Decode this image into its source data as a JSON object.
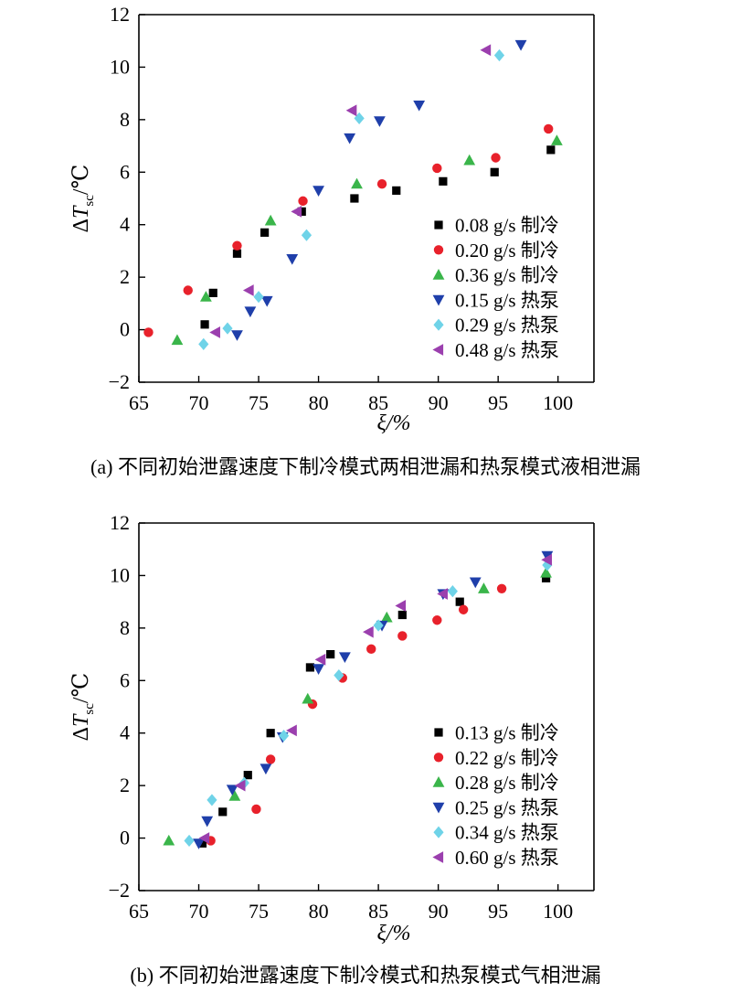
{
  "chart_data": [
    {
      "panel": "a",
      "type": "scatter",
      "caption": "(a) 不同初始泄露速度下制冷模式两相泄漏和热泵模式液相泄漏",
      "xlabel": "ξ/%",
      "ylabel": {
        "main": "ΔT",
        "sub": "sc",
        "unit": "/℃"
      },
      "xlim": [
        65,
        103
      ],
      "ylim": [
        -2,
        12
      ],
      "xticks": [
        65,
        70,
        75,
        80,
        85,
        90,
        95,
        100
      ],
      "yticks": [
        -2,
        0,
        2,
        4,
        6,
        8,
        10,
        12
      ],
      "grid": false,
      "legend_position": "lower-right",
      "series": [
        {
          "name": "0.08 g/s 制冷",
          "marker": "square",
          "color": "#000000",
          "points": [
            [
              70.5,
              0.2
            ],
            [
              71.2,
              1.4
            ],
            [
              73.2,
              2.9
            ],
            [
              75.5,
              3.7
            ],
            [
              78.6,
              4.5
            ],
            [
              83,
              5.0
            ],
            [
              86.5,
              5.3
            ],
            [
              90.4,
              5.65
            ],
            [
              94.7,
              6.0
            ],
            [
              99.4,
              6.85
            ]
          ]
        },
        {
          "name": "0.20 g/s 制冷",
          "marker": "circle",
          "color": "#e8212b",
          "points": [
            [
              65.8,
              -0.1
            ],
            [
              69.1,
              1.5
            ],
            [
              73.2,
              3.2
            ],
            [
              78.7,
              4.9
            ],
            [
              85.3,
              5.55
            ],
            [
              89.9,
              6.15
            ],
            [
              94.8,
              6.55
            ],
            [
              99.2,
              7.65
            ]
          ]
        },
        {
          "name": "0.36 g/s 制冷",
          "marker": "triangle-up",
          "color": "#3ab54a",
          "points": [
            [
              68.2,
              -0.4
            ],
            [
              70.6,
              1.25
            ],
            [
              76,
              4.15
            ],
            [
              83.2,
              5.55
            ],
            [
              92.6,
              6.45
            ],
            [
              99.9,
              7.2
            ]
          ]
        },
        {
          "name": "0.15 g/s 热泵",
          "marker": "triangle-down",
          "color": "#1f3faa",
          "points": [
            [
              73.2,
              -0.2
            ],
            [
              74.3,
              0.7
            ],
            [
              75.7,
              1.1
            ],
            [
              77.8,
              2.7
            ],
            [
              80,
              5.3
            ],
            [
              82.6,
              7.3
            ],
            [
              85.1,
              7.95
            ],
            [
              88.4,
              8.55
            ],
            [
              96.9,
              10.85
            ]
          ]
        },
        {
          "name": "0.29 g/s 热泵",
          "marker": "diamond",
          "color": "#6fd3e8",
          "points": [
            [
              70.4,
              -0.55
            ],
            [
              72.4,
              0.05
            ],
            [
              75,
              1.25
            ],
            [
              79,
              3.6
            ],
            [
              83.4,
              8.05
            ],
            [
              95.1,
              10.45
            ]
          ]
        },
        {
          "name": "0.48 g/s 热泵",
          "marker": "triangle-left",
          "color": "#9b3fae",
          "points": [
            [
              71.4,
              -0.1
            ],
            [
              74.2,
              1.5
            ],
            [
              78.2,
              4.5
            ],
            [
              82.8,
              8.35
            ],
            [
              94,
              10.65
            ]
          ]
        }
      ]
    },
    {
      "panel": "b",
      "type": "scatter",
      "caption": "(b) 不同初始泄露速度下制冷模式和热泵模式气相泄漏",
      "xlabel": "ξ/%",
      "ylabel": {
        "main": "ΔT",
        "sub": "sc",
        "unit": "/℃"
      },
      "xlim": [
        65,
        103
      ],
      "ylim": [
        -2,
        12
      ],
      "xticks": [
        65,
        70,
        75,
        80,
        85,
        90,
        95,
        100
      ],
      "yticks": [
        -2,
        0,
        2,
        4,
        6,
        8,
        10,
        12
      ],
      "grid": false,
      "legend_position": "lower-right",
      "series": [
        {
          "name": "0.13 g/s 制冷",
          "marker": "square",
          "color": "#000000",
          "points": [
            [
              70.3,
              -0.2
            ],
            [
              72,
              1.0
            ],
            [
              74.1,
              2.4
            ],
            [
              76,
              4.0
            ],
            [
              79.3,
              6.5
            ],
            [
              81,
              7.0
            ],
            [
              87,
              8.5
            ],
            [
              91.8,
              9.0
            ],
            [
              99,
              9.9
            ]
          ]
        },
        {
          "name": "0.22 g/s 制冷",
          "marker": "circle",
          "color": "#e8212b",
          "points": [
            [
              71,
              -0.1
            ],
            [
              74.8,
              1.1
            ],
            [
              76,
              3.0
            ],
            [
              79.5,
              5.1
            ],
            [
              82,
              6.1
            ],
            [
              84.4,
              7.2
            ],
            [
              87,
              7.7
            ],
            [
              89.9,
              8.3
            ],
            [
              92.1,
              8.7
            ],
            [
              95.3,
              9.5
            ]
          ]
        },
        {
          "name": "0.28 g/s 制冷",
          "marker": "triangle-up",
          "color": "#3ab54a",
          "points": [
            [
              67.5,
              -0.1
            ],
            [
              73,
              1.6
            ],
            [
              79.1,
              5.3
            ],
            [
              85.7,
              8.4
            ],
            [
              93.8,
              9.5
            ],
            [
              99,
              10.1
            ]
          ]
        },
        {
          "name": "0.25 g/s 热泵",
          "marker": "triangle-down",
          "color": "#1f3faa",
          "points": [
            [
              70,
              -0.2
            ],
            [
              70.7,
              0.65
            ],
            [
              72.8,
              1.85
            ],
            [
              75.6,
              2.65
            ],
            [
              77,
              3.85
            ],
            [
              80,
              6.45
            ],
            [
              82.2,
              6.9
            ],
            [
              85.3,
              8.1
            ],
            [
              90.4,
              9.3
            ],
            [
              93.1,
              9.75
            ],
            [
              99.1,
              10.75
            ]
          ]
        },
        {
          "name": "0.34 g/s 热泵",
          "marker": "diamond",
          "color": "#6fd3e8",
          "points": [
            [
              69.2,
              -0.1
            ],
            [
              71.1,
              1.45
            ],
            [
              73.8,
              2.1
            ],
            [
              77.1,
              3.9
            ],
            [
              81.7,
              6.2
            ],
            [
              85,
              8.1
            ],
            [
              91.2,
              9.4
            ],
            [
              99.1,
              10.4
            ]
          ]
        },
        {
          "name": "0.60 g/s 热泵",
          "marker": "triangle-left",
          "color": "#9b3fae",
          "points": [
            [
              70.5,
              0.0
            ],
            [
              73.5,
              2.0
            ],
            [
              77.8,
              4.1
            ],
            [
              80.2,
              6.8
            ],
            [
              84.2,
              7.85
            ],
            [
              86.9,
              8.85
            ],
            [
              90.4,
              9.3
            ],
            [
              99.1,
              10.6
            ]
          ]
        }
      ]
    }
  ]
}
